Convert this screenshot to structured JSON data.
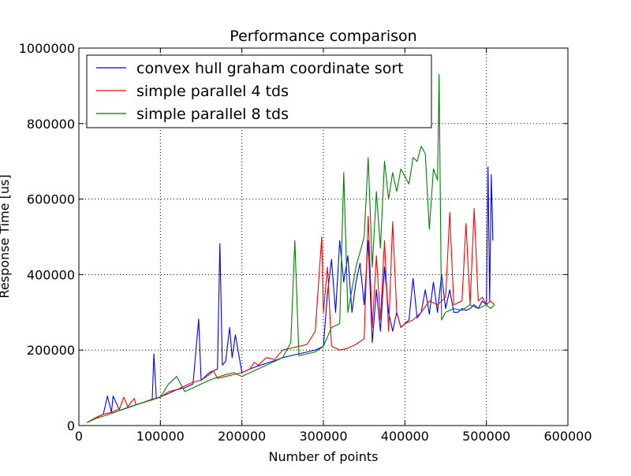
{
  "chart_data": {
    "type": "line",
    "title": "Performance comparison",
    "xlabel": "Number of points",
    "ylabel": "Response Time [us]",
    "xlim": [
      0,
      600000
    ],
    "ylim": [
      0,
      1000000
    ],
    "xticks": [
      0,
      100000,
      200000,
      300000,
      400000,
      500000,
      600000
    ],
    "yticks": [
      0,
      200000,
      400000,
      600000,
      800000,
      1000000
    ],
    "xtick_labels": [
      "0",
      "100000",
      "200000",
      "300000",
      "400000",
      "500000",
      "600000"
    ],
    "ytick_labels": [
      "0",
      "200000",
      "400000",
      "600000",
      "800000",
      "1000000"
    ],
    "grid": true,
    "legend_position": "top-left",
    "series": [
      {
        "name": "convex hull graham coordinate sort",
        "color": "#0000ff",
        "x": [
          10000,
          20000,
          30000,
          35000,
          40000,
          42000,
          50000,
          60000,
          70000,
          80000,
          90000,
          92000,
          95000,
          110000,
          120000,
          130000,
          140000,
          147000,
          150000,
          160000,
          170000,
          173000,
          176000,
          180000,
          185000,
          188000,
          192000,
          200000,
          210000,
          220000,
          230000,
          240000,
          250000,
          260000,
          270000,
          280000,
          290000,
          300000,
          305000,
          310000,
          315000,
          320000,
          325000,
          330000,
          335000,
          340000,
          345000,
          350000,
          355000,
          360000,
          365000,
          370000,
          375000,
          380000,
          385000,
          390000,
          395000,
          400000,
          405000,
          410000,
          415000,
          420000,
          425000,
          430000,
          435000,
          440000,
          445000,
          450000,
          455000,
          460000,
          465000,
          470000,
          475000,
          480000,
          485000,
          490000,
          495000,
          500000,
          502000,
          504000,
          506000,
          508000
        ],
        "y": [
          8000,
          20000,
          30000,
          78000,
          35000,
          78000,
          40000,
          47000,
          55000,
          62000,
          70000,
          190000,
          72000,
          85000,
          95000,
          100000,
          110000,
          282000,
          120000,
          140000,
          150000,
          482000,
          160000,
          170000,
          260000,
          180000,
          240000,
          140000,
          150000,
          158000,
          165000,
          172000,
          180000,
          185000,
          190000,
          195000,
          200000,
          210000,
          350000,
          440000,
          300000,
          490000,
          380000,
          450000,
          300000,
          380000,
          430000,
          320000,
          490000,
          220000,
          360000,
          250000,
          420000,
          300000,
          250000,
          300000,
          260000,
          270000,
          280000,
          390000,
          285000,
          300000,
          360000,
          295000,
          380000,
          300000,
          400000,
          310000,
          360000,
          300000,
          300000,
          310000,
          305000,
          310000,
          320000,
          310000,
          330000,
          320000,
          685000,
          330000,
          665000,
          490000
        ]
      },
      {
        "name": "simple parallel 4 tds",
        "color": "#ff0000",
        "x": [
          10000,
          20000,
          30000,
          40000,
          50000,
          55000,
          60000,
          68000,
          70000,
          80000,
          90000,
          100000,
          110000,
          120000,
          130000,
          140000,
          150000,
          160000,
          165000,
          170000,
          180000,
          190000,
          200000,
          210000,
          215000,
          220000,
          230000,
          240000,
          250000,
          260000,
          270000,
          280000,
          290000,
          298000,
          300000,
          305000,
          310000,
          320000,
          330000,
          340000,
          350000,
          355000,
          360000,
          365000,
          370000,
          375000,
          380000,
          385000,
          390000,
          395000,
          400000,
          410000,
          420000,
          430000,
          440000,
          450000,
          455000,
          460000,
          470000,
          475000,
          480000,
          485000,
          490000,
          495000,
          500000,
          505000,
          510000
        ],
        "y": [
          8000,
          20000,
          30000,
          35000,
          45000,
          75000,
          50000,
          72000,
          55000,
          62000,
          70000,
          75000,
          90000,
          95000,
          105000,
          115000,
          120000,
          135000,
          145000,
          125000,
          130000,
          135000,
          140000,
          150000,
          168000,
          160000,
          180000,
          175000,
          200000,
          205000,
          210000,
          215000,
          250000,
          500000,
          300000,
          420000,
          210000,
          200000,
          205000,
          215000,
          230000,
          555000,
          260000,
          450000,
          280000,
          490000,
          250000,
          540000,
          300000,
          260000,
          270000,
          280000,
          300000,
          330000,
          320000,
          340000,
          565000,
          320000,
          330000,
          535000,
          320000,
          575000,
          330000,
          340000,
          320000,
          330000,
          320000
        ]
      },
      {
        "name": "simple parallel 8 tds",
        "color": "#008000",
        "x": [
          10000,
          20000,
          30000,
          40000,
          50000,
          60000,
          70000,
          80000,
          90000,
          100000,
          110000,
          120000,
          130000,
          140000,
          150000,
          160000,
          170000,
          180000,
          190000,
          200000,
          210000,
          220000,
          230000,
          240000,
          250000,
          260000,
          265000,
          270000,
          280000,
          290000,
          300000,
          310000,
          320000,
          325000,
          330000,
          340000,
          350000,
          355000,
          360000,
          365000,
          370000,
          375000,
          380000,
          385000,
          390000,
          395000,
          400000,
          405000,
          410000,
          415000,
          420000,
          425000,
          430000,
          435000,
          440000,
          442000,
          445000,
          450000,
          460000,
          470000,
          480000,
          490000,
          500000,
          505000,
          510000
        ],
        "y": [
          8000,
          18000,
          25000,
          32000,
          40000,
          48000,
          55000,
          62000,
          68000,
          75000,
          110000,
          130000,
          90000,
          100000,
          110000,
          120000,
          128000,
          135000,
          140000,
          130000,
          140000,
          150000,
          160000,
          170000,
          180000,
          220000,
          490000,
          185000,
          190000,
          195000,
          210000,
          260000,
          270000,
          670000,
          300000,
          420000,
          500000,
          710000,
          420000,
          620000,
          470000,
          700000,
          600000,
          670000,
          620000,
          680000,
          660000,
          640000,
          710000,
          700000,
          740000,
          720000,
          520000,
          680000,
          650000,
          930000,
          280000,
          300000,
          310000,
          305000,
          320000,
          310000,
          320000,
          310000,
          320000
        ]
      }
    ]
  }
}
